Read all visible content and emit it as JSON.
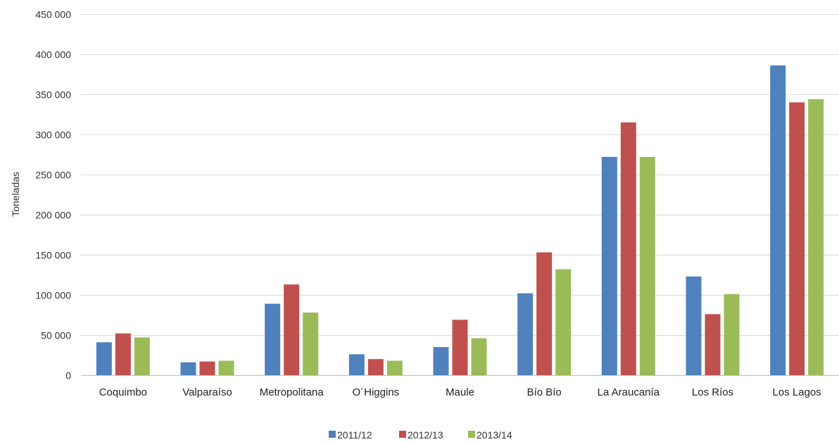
{
  "chart_data": {
    "type": "bar",
    "title": "",
    "xlabel": "",
    "ylabel": "Toneladas",
    "ylim": [
      0,
      450000
    ],
    "yticks": [
      0,
      50000,
      100000,
      150000,
      200000,
      250000,
      300000,
      350000,
      400000,
      450000
    ],
    "ytick_labels": [
      "0",
      "50 000",
      "100 000",
      "150 000",
      "200 000",
      "250 000",
      "300 000",
      "350 000",
      "400 000",
      "450 000"
    ],
    "grid": true,
    "legend_position": "bottom",
    "categories": [
      "Coquimbo",
      "Valparaíso",
      "Metropolitana",
      "O´Higgins",
      "Maule",
      "Bío Bío",
      "La Araucanía",
      "Los Ríos",
      "Los Lagos"
    ],
    "series": [
      {
        "name": "2011/12",
        "color": "#4F81BD",
        "values": [
          41000,
          16000,
          89000,
          26000,
          35000,
          102000,
          272000,
          123000,
          386000
        ]
      },
      {
        "name": "2012/13",
        "color": "#C0504D",
        "values": [
          52000,
          17000,
          113000,
          20000,
          69000,
          153000,
          315000,
          76000,
          340000
        ]
      },
      {
        "name": "2013/14",
        "color": "#9BBB59",
        "values": [
          47000,
          18000,
          78000,
          18000,
          46000,
          132000,
          272000,
          101000,
          344000
        ]
      }
    ]
  }
}
